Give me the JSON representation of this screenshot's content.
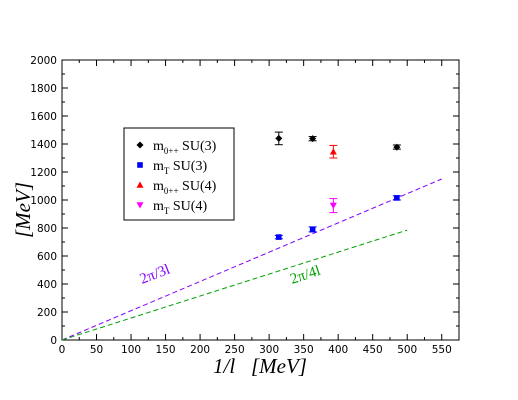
{
  "chart_data": {
    "type": "scatter",
    "title": "",
    "xlabel": "1/l   [MeV]",
    "ylabel": "[MeV]",
    "xlim": [
      0,
      575
    ],
    "ylim": [
      0,
      2000
    ],
    "xticks": [
      0,
      50,
      100,
      150,
      200,
      250,
      300,
      350,
      400,
      450,
      500,
      550
    ],
    "yticks": [
      0,
      200,
      400,
      600,
      800,
      1000,
      1200,
      1400,
      1600,
      1800,
      2000
    ],
    "xtick_labels": [
      "0",
      "50",
      "100",
      "150",
      "200",
      "250",
      "300",
      "350",
      "400",
      "450",
      "500",
      "550"
    ],
    "ytick_labels": [
      "0",
      "200",
      "400",
      "600",
      "800",
      "1000",
      "1200",
      "1400",
      "1600",
      "1800",
      "2000"
    ],
    "grid": false,
    "legend_position": "upper-left",
    "series": [
      {
        "key": "m0_su3",
        "legend_main": "m",
        "legend_sub": "0++",
        "legend_rest": " SU(3)",
        "marker": "diamond",
        "color": "#000000",
        "points": [
          {
            "x": 314,
            "y": 1440,
            "err": 45
          },
          {
            "x": 363,
            "y": 1438,
            "err": 15
          },
          {
            "x": 485,
            "y": 1378,
            "err": 15
          }
        ]
      },
      {
        "key": "mT_su3",
        "legend_main": "m",
        "legend_sub": "T",
        "legend_rest": "  SU(3)",
        "marker": "square",
        "color": "#0000ff",
        "points": [
          {
            "x": 314,
            "y": 735,
            "err": 12
          },
          {
            "x": 363,
            "y": 790,
            "err": 18
          },
          {
            "x": 485,
            "y": 1015,
            "err": 15
          }
        ]
      },
      {
        "key": "m0_su4",
        "legend_main": "m",
        "legend_sub": "0++",
        "legend_rest": " SU(4)",
        "marker": "triangle-up",
        "color": "#ff0000",
        "points": [
          {
            "x": 393,
            "y": 1345,
            "err": 45
          }
        ]
      },
      {
        "key": "mT_su4",
        "legend_main": "m",
        "legend_sub": "T",
        "legend_rest": "  SU(4)",
        "marker": "triangle-down",
        "color": "#ff00ff",
        "points": [
          {
            "x": 393,
            "y": 960,
            "err": 50
          }
        ]
      }
    ],
    "lines": [
      {
        "key": "su3_line",
        "label": "2π/3l",
        "color": "#8000ff",
        "style": "dashed",
        "x": [
          0,
          550
        ],
        "y": [
          0,
          1150
        ]
      },
      {
        "key": "su4_line",
        "label": "2π/4l",
        "color": "#00a000",
        "style": "dashed",
        "x": [
          0,
          500
        ],
        "y": [
          0,
          785
        ]
      }
    ]
  }
}
